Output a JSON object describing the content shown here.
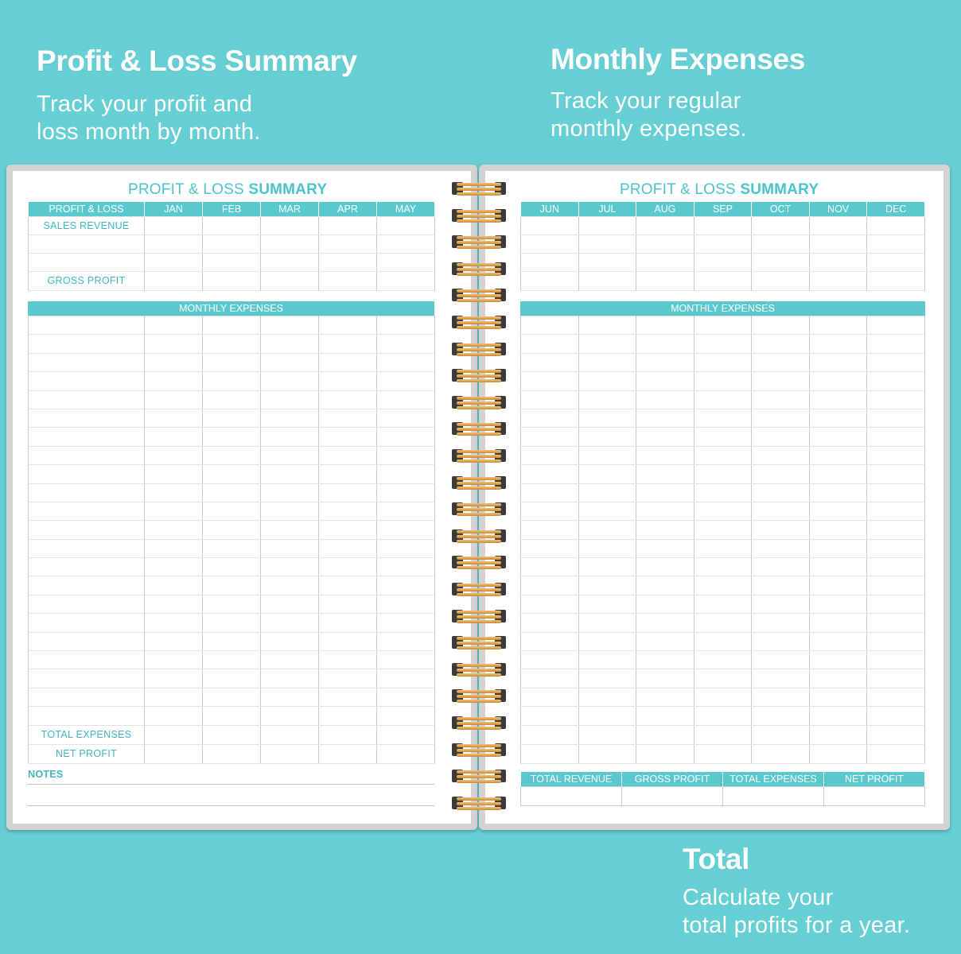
{
  "captions": {
    "left_title": "Profit & Loss Summary",
    "left_sub_1": "Track your profit and",
    "left_sub_2": "loss month by month.",
    "right_title": "Monthly Expenses",
    "right_sub_1": "Track your regular",
    "right_sub_2": "monthly expenses.",
    "total_title": "Total",
    "total_sub_1": "Calculate your",
    "total_sub_2": "total profits for a year."
  },
  "left_page": {
    "title_light": "PROFIT & LOSS ",
    "title_bold": "SUMMARY",
    "header": [
      "PROFIT & LOSS",
      "JAN",
      "FEB",
      "MAR",
      "APR",
      "MAY"
    ],
    "sales_revenue": "SALES REVENUE",
    "gross_profit": "GROSS PROFIT",
    "monthly_expenses": "MONTHLY EXPENSES",
    "total_expenses": "TOTAL EXPENSES",
    "net_profit": "NET PROFIT",
    "notes": "NOTES"
  },
  "right_page": {
    "title_light": "PROFIT & LOSS ",
    "title_bold": "SUMMARY",
    "header": [
      "JUN",
      "JUL",
      "AUG",
      "SEP",
      "OCT",
      "NOV",
      "DEC"
    ],
    "monthly_expenses": "MONTHLY EXPENSES",
    "totals": [
      "TOTAL REVENUE",
      "GROSS PROFIT",
      "TOTAL EXPENSES",
      "NET PROFIT"
    ]
  },
  "colors": {
    "background": "#66cfd4",
    "accent": "#5ac8cf",
    "label_text": "#3fb5bf",
    "coil": "#e0a44f"
  }
}
